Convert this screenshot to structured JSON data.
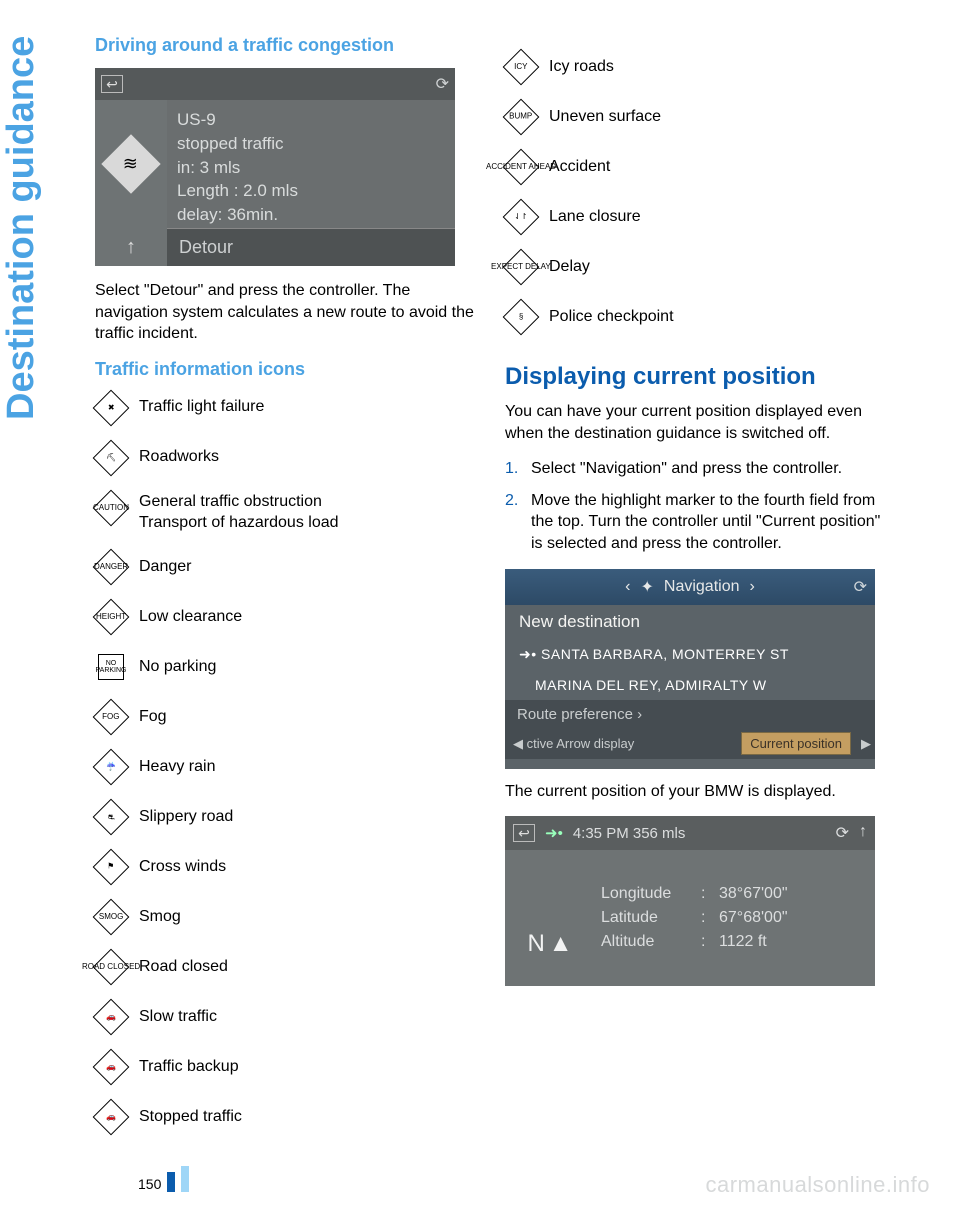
{
  "sideTitle": "Destination guidance",
  "col1": {
    "h_driving": "Driving around a traffic congestion",
    "shot1": {
      "line1": "US-9",
      "line2": "stopped traffic",
      "line3": "in: 3 mls",
      "line4": "Length :  2.0 mls",
      "line5": "delay: 36min.",
      "detour": "Detour"
    },
    "p_select": "Select \"Detour\" and press the controller. The navigation system calculates a new route to avoid the traffic incident.",
    "h_icons": "Traffic information icons",
    "icons": [
      {
        "sym": "✖",
        "shape": "diamond",
        "label": "Traffic light failure"
      },
      {
        "sym": "⛏",
        "shape": "diamond",
        "label": "Roadworks"
      },
      {
        "sym": "CAUTION",
        "shape": "diamond",
        "label": "General traffic obstruction\nTransport of hazardous load"
      },
      {
        "sym": "DANGER",
        "shape": "diamond",
        "label": "Danger"
      },
      {
        "sym": "HEIGHT",
        "shape": "diamond",
        "label": "Low clearance"
      },
      {
        "sym": "NO\nPARKING",
        "shape": "square",
        "label": "No parking"
      },
      {
        "sym": "FOG",
        "shape": "diamond",
        "label": "Fog"
      },
      {
        "sym": "☔",
        "shape": "diamond",
        "label": "Heavy rain"
      },
      {
        "sym": "⛐",
        "shape": "diamond",
        "label": "Slippery road"
      },
      {
        "sym": "⚑",
        "shape": "diamond",
        "label": "Cross winds"
      },
      {
        "sym": "SMOG",
        "shape": "diamond",
        "label": "Smog"
      },
      {
        "sym": "ROAD\nCLOSED",
        "shape": "diamond",
        "label": "Road closed"
      },
      {
        "sym": "🚗",
        "shape": "diamond",
        "label": "Slow traffic"
      },
      {
        "sym": "🚗",
        "shape": "diamond",
        "label": "Traffic backup"
      },
      {
        "sym": "🚗",
        "shape": "diamond",
        "label": "Stopped traffic"
      }
    ]
  },
  "col2": {
    "icons": [
      {
        "sym": "ICY",
        "shape": "diamond",
        "label": "Icy roads"
      },
      {
        "sym": "BUMP",
        "shape": "diamond",
        "label": "Uneven surface"
      },
      {
        "sym": "ACCIDENT\nAHEAD",
        "shape": "diamond",
        "label": "Accident"
      },
      {
        "sym": "⇃↾",
        "shape": "diamond",
        "label": "Lane closure"
      },
      {
        "sym": "EXPECT\nDELAY",
        "shape": "diamond",
        "label": "Delay"
      },
      {
        "sym": "§",
        "shape": "diamond",
        "label": "Police checkpoint"
      }
    ],
    "h_display": "Displaying current position",
    "p_display": "You can have your current position displayed even when the destination guidance is switched off.",
    "step1": "Select \"Navigation\" and press the controller.",
    "step2": "Move the highlight marker to the fourth field from the top. Turn the controller until \"Current position\" is selected and press the controller.",
    "shot2": {
      "nav": "Navigation",
      "newdest": "New destination",
      "d1": "SANTA BARBARA, MONTERREY ST",
      "d2": "MARINA DEL REY, ADMIRALTY W",
      "routepref": "Route preference ›",
      "bl": "◀ ctive   Arrow display",
      "curpos": "Current position"
    },
    "p_current": "The current position of your BMW is displayed.",
    "shot3": {
      "time": "4:35 PM  356 mls",
      "compass": "N",
      "lon_l": "Longitude",
      "lon_v": "38°67'00\"",
      "lat_l": "Latitude",
      "lat_v": "67°68'00\"",
      "alt_l": "Altitude",
      "alt_v": "1122 ft"
    }
  },
  "pageNum": "150",
  "watermark": "carmanualsonline.info"
}
